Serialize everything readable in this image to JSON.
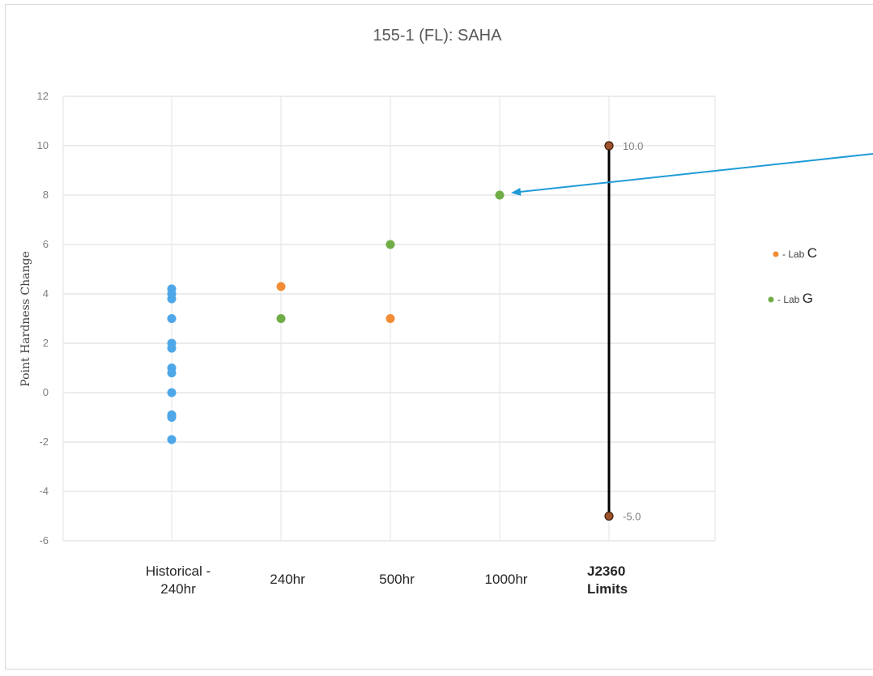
{
  "chart_data": {
    "type": "scatter",
    "title": "155-1 (FL): SAHA",
    "ylabel": "Point Hardness Change",
    "xlabel": "",
    "ylim": [
      -6,
      12
    ],
    "ytick_step": 2,
    "yticks": [
      "12",
      "10",
      "8",
      "6",
      "4",
      "2",
      "0",
      "-2",
      "-4",
      "-6"
    ],
    "grid": true,
    "categories": [
      {
        "lines": [
          "Historical -",
          "240hr"
        ],
        "bold": false
      },
      {
        "lines": [
          "240hr"
        ],
        "bold": false
      },
      {
        "lines": [
          "500hr"
        ],
        "bold": false
      },
      {
        "lines": [
          "1000hr"
        ],
        "bold": false
      },
      {
        "lines": [
          "J2360",
          "Limits"
        ],
        "bold": true
      }
    ],
    "series": [
      {
        "name": "",
        "color": "#4ea7e8",
        "points": [
          {
            "cat": 0,
            "y": 4.2
          },
          {
            "cat": 0,
            "y": 4.0
          },
          {
            "cat": 0,
            "y": 3.8
          },
          {
            "cat": 0,
            "y": 3.0
          },
          {
            "cat": 0,
            "y": 2.0
          },
          {
            "cat": 0,
            "y": 1.8
          },
          {
            "cat": 0,
            "y": 1.0
          },
          {
            "cat": 0,
            "y": 0.8
          },
          {
            "cat": 0,
            "y": 0.0
          },
          {
            "cat": 0,
            "y": -0.9
          },
          {
            "cat": 0,
            "y": -1.0
          },
          {
            "cat": 0,
            "y": -1.9
          }
        ]
      },
      {
        "name": "Lab C",
        "color": "#f28c35",
        "points": [
          {
            "cat": 1,
            "y": 4.3
          },
          {
            "cat": 2,
            "y": 3.0
          }
        ]
      },
      {
        "name": "Lab G",
        "color": "#70ad47",
        "points": [
          {
            "cat": 1,
            "y": 3.0
          },
          {
            "cat": 2,
            "y": 6.0
          },
          {
            "cat": 3,
            "y": 8.0
          }
        ]
      }
    ],
    "limits": {
      "category": 4,
      "upper": 10.0,
      "lower": -5.0,
      "upper_label": "10.0",
      "lower_label": "-5.0",
      "line_color": "#000000",
      "marker_color": "#a0522d"
    },
    "arrow": {
      "color": "#1f9bd7",
      "target": {
        "cat": 3,
        "y": 8.0
      }
    },
    "legend": {
      "placement": "right",
      "items": [
        {
          "prefix": "- Lab",
          "letter": "C",
          "color": "#f28c35"
        },
        {
          "prefix": "- Lab",
          "letter": "G",
          "color": "#70ad47"
        }
      ]
    }
  }
}
